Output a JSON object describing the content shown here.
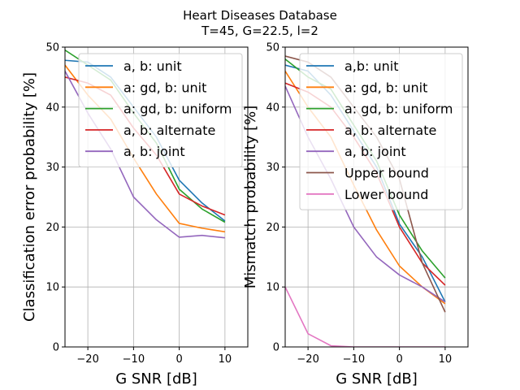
{
  "figure": {
    "title_line1": "Heart Diseases Database",
    "title_line2": "T=45, G=22.5, l=2"
  },
  "chart_data": [
    {
      "type": "line",
      "xlabel": "G SNR [dB]",
      "ylabel": "Classification error probability [%]",
      "xlim": [
        -25,
        15
      ],
      "ylim": [
        0,
        50
      ],
      "xticks": [
        -20,
        -10,
        0,
        10
      ],
      "xtick_labels": [
        "−20",
        "−10",
        "0",
        "10"
      ],
      "yticks": [
        0,
        10,
        20,
        30,
        40,
        50
      ],
      "ytick_labels": [
        "0",
        "10",
        "20",
        "30",
        "40",
        "50"
      ],
      "grid": true,
      "legend_position": "top-right",
      "x": [
        -25,
        -20,
        -15,
        -10,
        -5,
        0,
        5,
        10
      ],
      "series": [
        {
          "name": "a, b: unit",
          "color": "#1f77b4",
          "values": [
            47.8,
            47.5,
            45.0,
            40.0,
            35.0,
            27.8,
            24.0,
            21.0
          ]
        },
        {
          "name": "a: gd, b: unit",
          "color": "#ff7f0e",
          "values": [
            47.0,
            42.0,
            38.0,
            31.5,
            25.5,
            20.6,
            19.8,
            19.2
          ]
        },
        {
          "name": "a: gd, b: uniform",
          "color": "#2ca02c",
          "values": [
            49.5,
            47.0,
            44.5,
            39.0,
            34.0,
            26.3,
            23.0,
            20.8
          ]
        },
        {
          "name": "a, b: alternate",
          "color": "#d62728",
          "values": [
            45.0,
            44.0,
            42.0,
            36.5,
            32.0,
            25.5,
            23.5,
            22.0
          ]
        },
        {
          "name": "a, b: joint",
          "color": "#9467bd",
          "values": [
            46.0,
            39.0,
            33.0,
            25.0,
            21.2,
            18.3,
            18.6,
            18.2
          ]
        }
      ]
    },
    {
      "type": "line",
      "xlabel": "G SNR [dB]",
      "ylabel": "Mismatch probability [%]",
      "xlim": [
        -25,
        15
      ],
      "ylim": [
        0,
        50
      ],
      "xticks": [
        -20,
        -10,
        0,
        10
      ],
      "xtick_labels": [
        "−20",
        "−10",
        "0",
        "10"
      ],
      "yticks": [
        0,
        10,
        20,
        30,
        40,
        50
      ],
      "ytick_labels": [
        "0",
        "10",
        "20",
        "30",
        "40",
        "50"
      ],
      "grid": true,
      "legend_position": "top-right",
      "x": [
        -25,
        -20,
        -15,
        -10,
        -5,
        0,
        5,
        10
      ],
      "series": [
        {
          "name": "a,b: unit",
          "color": "#1f77b4",
          "values": [
            47.0,
            46.0,
            42.0,
            36.0,
            30.0,
            20.5,
            15.0,
            7.5
          ]
        },
        {
          "name": "a: gd, b: unit",
          "color": "#ff7f0e",
          "values": [
            46.0,
            40.0,
            35.0,
            27.0,
            19.5,
            13.5,
            10.0,
            7.2
          ]
        },
        {
          "name": "a: gd, b: uniform",
          "color": "#2ca02c",
          "values": [
            48.0,
            45.0,
            43.0,
            37.0,
            31.0,
            22.0,
            16.0,
            11.5
          ]
        },
        {
          "name": "a, b: alternate",
          "color": "#d62728",
          "values": [
            44.0,
            42.5,
            40.0,
            35.0,
            29.0,
            20.0,
            14.0,
            10.3
          ]
        },
        {
          "name": "a, b: joint",
          "color": "#9467bd",
          "values": [
            43.5,
            35.0,
            28.0,
            20.0,
            15.0,
            12.0,
            10.0,
            7.5
          ]
        },
        {
          "name": "Upper bound",
          "color": "#8c564b",
          "values": [
            48.5,
            47.5,
            45.0,
            40.0,
            35.0,
            28.0,
            14.0,
            5.8
          ]
        },
        {
          "name": "Lower bound",
          "color": "#e377c2",
          "values": [
            10.0,
            2.2,
            0.2,
            0.0,
            0.0,
            0.0,
            0.0,
            0.0
          ]
        }
      ]
    }
  ]
}
